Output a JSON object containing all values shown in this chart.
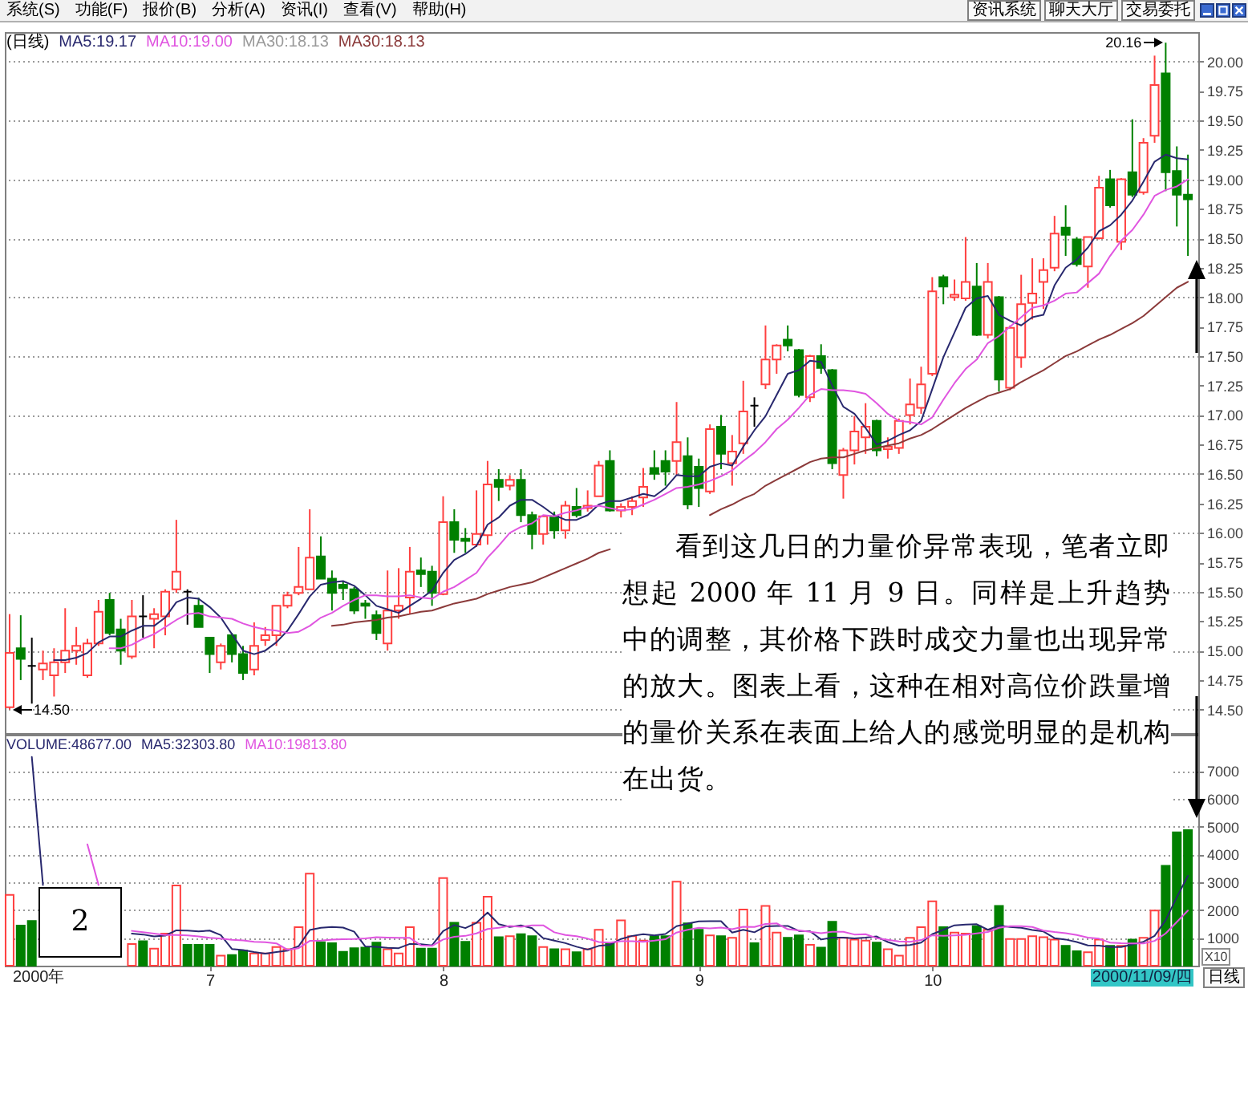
{
  "chart_data": [
    {
      "type": "candlestick",
      "categories": [
        null,
        null,
        null,
        null,
        null,
        null,
        null,
        null,
        null,
        null,
        null,
        null,
        null,
        null,
        null,
        null,
        null,
        null,
        null,
        null,
        null,
        null,
        null,
        null,
        null,
        null,
        null,
        null,
        null,
        null,
        null,
        null,
        null,
        null,
        null,
        null,
        null,
        null,
        null,
        null,
        null,
        null,
        null,
        null,
        null,
        null,
        null,
        null,
        null,
        null,
        null,
        null,
        null,
        null,
        null,
        null,
        null,
        null,
        null,
        null,
        null,
        null,
        null,
        null,
        null,
        null,
        null,
        null,
        null,
        null,
        null,
        null,
        null,
        null,
        null,
        null,
        null,
        null,
        null,
        null,
        null,
        null,
        null,
        null,
        null,
        null,
        null,
        null,
        null,
        null,
        null,
        null,
        null,
        null,
        null,
        null,
        null,
        null,
        null,
        null,
        null,
        null,
        null,
        null,
        null,
        null,
        null
      ],
      "ohlc": [
        [
          14.52,
          15.31,
          14.5,
          14.98
        ],
        [
          15.02,
          15.3,
          14.75,
          14.93
        ],
        [
          14.87,
          15.11,
          14.55,
          14.87
        ],
        [
          14.84,
          15.0,
          14.75,
          14.89
        ],
        [
          14.79,
          15.02,
          14.61,
          14.9
        ],
        [
          14.9,
          15.36,
          14.81,
          15.0
        ],
        [
          15.0,
          15.2,
          14.88,
          15.04
        ],
        [
          14.79,
          15.1,
          14.77,
          15.06
        ],
        [
          15.06,
          15.43,
          15.04,
          15.33
        ],
        [
          15.43,
          15.49,
          15.13,
          15.15
        ],
        [
          15.18,
          15.27,
          14.88,
          15.0
        ],
        [
          14.95,
          15.43,
          14.93,
          15.29
        ],
        [
          15.29,
          15.47,
          15.11,
          15.29
        ],
        [
          15.27,
          15.36,
          15.02,
          15.31
        ],
        [
          15.29,
          15.52,
          15.13,
          15.5
        ],
        [
          15.52,
          16.11,
          15.49,
          15.67
        ],
        [
          15.5,
          15.52,
          15.22,
          15.5
        ],
        [
          15.38,
          15.45,
          15.2,
          15.2
        ],
        [
          15.11,
          15.11,
          14.81,
          14.97
        ],
        [
          14.9,
          15.06,
          14.84,
          15.04
        ],
        [
          15.13,
          15.15,
          14.9,
          14.97
        ],
        [
          14.97,
          15.04,
          14.75,
          14.81
        ],
        [
          14.84,
          15.24,
          14.79,
          15.04
        ],
        [
          15.09,
          15.2,
          15.04,
          15.13
        ],
        [
          15.13,
          15.38,
          15.04,
          15.38
        ],
        [
          15.38,
          15.5,
          15.36,
          15.47
        ],
        [
          15.49,
          15.88,
          15.47,
          15.54
        ],
        [
          15.52,
          16.2,
          15.52,
          15.79
        ],
        [
          15.8,
          15.97,
          15.61,
          15.61
        ],
        [
          15.61,
          15.68,
          15.34,
          15.49
        ],
        [
          15.56,
          15.59,
          15.43,
          15.53
        ],
        [
          15.52,
          15.54,
          15.31,
          15.34
        ],
        [
          15.4,
          15.43,
          15.27,
          15.38
        ],
        [
          15.3,
          15.34,
          15.09,
          15.15
        ],
        [
          15.06,
          15.68,
          15.0,
          15.34
        ],
        [
          15.34,
          15.7,
          15.27,
          15.38
        ],
        [
          15.45,
          15.88,
          15.31,
          15.67
        ],
        [
          15.68,
          15.79,
          15.54,
          15.65
        ],
        [
          15.67,
          15.72,
          15.38,
          15.49
        ],
        [
          15.48,
          16.31,
          15.47,
          16.09
        ],
        [
          16.09,
          16.2,
          15.83,
          15.94
        ],
        [
          15.95,
          16.04,
          15.83,
          15.93
        ],
        [
          15.9,
          16.36,
          15.88,
          15.99
        ],
        [
          15.98,
          16.61,
          15.9,
          16.41
        ],
        [
          16.45,
          16.54,
          16.27,
          16.39
        ],
        [
          16.4,
          16.49,
          16.36,
          16.45
        ],
        [
          16.45,
          16.54,
          16.09,
          16.15
        ],
        [
          16.15,
          16.18,
          15.86,
          15.99
        ],
        [
          15.99,
          16.15,
          15.9,
          16.14
        ],
        [
          16.14,
          16.18,
          15.95,
          16.02
        ],
        [
          16.02,
          16.27,
          15.95,
          16.23
        ],
        [
          16.22,
          16.38,
          16.13,
          16.15
        ],
        [
          16.21,
          16.36,
          16.18,
          16.23
        ],
        [
          16.31,
          16.61,
          16.31,
          16.57
        ],
        [
          16.61,
          16.7,
          16.18,
          16.19
        ],
        [
          16.19,
          16.25,
          16.13,
          16.22
        ],
        [
          16.22,
          16.31,
          16.15,
          16.27
        ],
        [
          16.3,
          16.55,
          16.22,
          16.39
        ],
        [
          16.55,
          16.7,
          16.45,
          16.5
        ],
        [
          16.61,
          16.7,
          16.4,
          16.52
        ],
        [
          16.61,
          17.11,
          16.49,
          16.77
        ],
        [
          16.65,
          16.81,
          16.2,
          16.24
        ],
        [
          16.56,
          16.63,
          16.22,
          16.38
        ],
        [
          16.35,
          16.92,
          16.33,
          16.88
        ],
        [
          16.9,
          17.0,
          16.54,
          16.67
        ],
        [
          16.59,
          16.83,
          16.4,
          16.69
        ],
        [
          16.76,
          17.29,
          16.67,
          17.03
        ],
        [
          17.08,
          17.15,
          16.9,
          17.08
        ],
        [
          17.26,
          17.76,
          17.22,
          17.47
        ],
        [
          17.47,
          17.6,
          17.35,
          17.59
        ],
        [
          17.64,
          17.76,
          17.54,
          17.59
        ],
        [
          17.55,
          17.56,
          17.15,
          17.17
        ],
        [
          17.15,
          17.51,
          17.11,
          17.5
        ],
        [
          17.5,
          17.6,
          17.35,
          17.4
        ],
        [
          17.38,
          17.39,
          16.54,
          16.59
        ],
        [
          16.49,
          16.72,
          16.29,
          16.7
        ],
        [
          16.7,
          16.99,
          16.58,
          16.86
        ],
        [
          16.81,
          17.1,
          16.67,
          16.9
        ],
        [
          16.95,
          16.96,
          16.65,
          16.7
        ],
        [
          16.71,
          16.81,
          16.63,
          16.73
        ],
        [
          16.72,
          16.97,
          16.67,
          16.95
        ],
        [
          17.0,
          17.31,
          16.92,
          17.09
        ],
        [
          17.06,
          17.41,
          17.01,
          17.26
        ],
        [
          17.35,
          18.17,
          17.33,
          18.05
        ],
        [
          18.17,
          18.19,
          17.94,
          18.09
        ],
        [
          18.0,
          18.15,
          17.97,
          18.02
        ],
        [
          17.99,
          18.51,
          17.97,
          18.13
        ],
        [
          18.09,
          18.29,
          17.67,
          17.68
        ],
        [
          17.68,
          18.29,
          17.65,
          18.13
        ],
        [
          18.0,
          18.01,
          17.2,
          17.3
        ],
        [
          17.23,
          17.76,
          17.21,
          17.74
        ],
        [
          17.49,
          18.19,
          17.4,
          17.94
        ],
        [
          17.95,
          18.33,
          17.81,
          18.03
        ],
        [
          18.13,
          18.33,
          17.9,
          18.23
        ],
        [
          18.25,
          18.69,
          18.22,
          18.54
        ],
        [
          18.59,
          18.78,
          18.35,
          18.53
        ],
        [
          18.49,
          18.51,
          18.26,
          18.28
        ],
        [
          18.26,
          18.51,
          18.08,
          18.51
        ],
        [
          18.5,
          19.03,
          18.49,
          18.93
        ],
        [
          19.0,
          19.08,
          18.76,
          18.78
        ],
        [
          18.47,
          19.01,
          18.4,
          19.0
        ],
        [
          19.06,
          19.51,
          18.85,
          18.87
        ],
        [
          18.89,
          19.35,
          18.87,
          19.31
        ],
        [
          19.37,
          20.05,
          19.31,
          19.8
        ],
        [
          19.9,
          20.16,
          18.9,
          19.06
        ],
        [
          19.07,
          19.28,
          18.6,
          18.87
        ],
        [
          18.87,
          19.21,
          18.35,
          18.83
        ]
      ],
      "colors": [
        "#ff4040",
        "#008000",
        "#000000",
        "#ff4040",
        "#ff4040",
        "#ff4040",
        "#ff4040",
        "#ff4040",
        "#ff4040",
        "#008000",
        "#008000",
        "#ff4040",
        "#000000",
        "#ff4040",
        "#ff4040",
        "#ff4040",
        "#000000",
        "#008000",
        "#008000",
        "#ff4040",
        "#008000",
        "#008000",
        "#ff4040",
        "#ff4040",
        "#ff4040",
        "#ff4040",
        "#ff4040",
        "#ff4040",
        "#008000",
        "#008000",
        "#008000",
        "#008000",
        "#008000",
        "#008000",
        "#ff4040",
        "#ff4040",
        "#ff4040",
        "#008000",
        "#008000",
        "#ff4040",
        "#008000",
        "#008000",
        "#ff4040",
        "#ff4040",
        "#008000",
        "#ff4040",
        "#008000",
        "#008000",
        "#ff4040",
        "#008000",
        "#ff4040",
        "#008000",
        "#ff4040",
        "#ff4040",
        "#008000",
        "#ff4040",
        "#ff4040",
        "#ff4040",
        "#008000",
        "#008000",
        "#ff4040",
        "#008000",
        "#008000",
        "#ff4040",
        "#008000",
        "#ff4040",
        "#ff4040",
        "#000000",
        "#ff4040",
        "#ff4040",
        "#008000",
        "#008000",
        "#ff4040",
        "#008000",
        "#008000",
        "#ff4040",
        "#ff4040",
        "#ff4040",
        "#008000",
        "#ff4040",
        "#ff4040",
        "#ff4040",
        "#ff4040",
        "#ff4040",
        "#008000",
        "#ff4040",
        "#ff4040",
        "#008000",
        "#ff4040",
        "#008000",
        "#ff4040",
        "#ff4040",
        "#ff4040",
        "#ff4040",
        "#ff4040",
        "#008000",
        "#008000",
        "#ff4040",
        "#ff4040",
        "#008000",
        "#ff4040",
        "#008000",
        "#ff4040",
        "#ff4040",
        "#008000",
        "#008000",
        "#008000"
      ],
      "series": [
        {
          "name": "MA5:19.17",
          "type": "line",
          "color": "#28286e",
          "values": [
            null,
            null,
            null,
            null,
            14.92,
            14.92,
            14.94,
            14.98,
            15.07,
            15.12,
            15.12,
            15.17,
            15.21,
            15.21,
            15.28,
            15.41,
            15.45,
            15.44,
            15.37,
            15.28,
            15.14,
            15.0,
            14.97,
            15.0,
            15.07,
            15.17,
            15.31,
            15.46,
            15.56,
            15.58,
            15.59,
            15.55,
            15.47,
            15.38,
            15.35,
            15.32,
            15.38,
            15.44,
            15.51,
            15.66,
            15.77,
            15.82,
            15.89,
            16.07,
            16.13,
            16.23,
            16.28,
            16.28,
            16.22,
            16.15,
            16.11,
            16.11,
            16.15,
            16.24,
            16.27,
            16.27,
            16.3,
            16.33,
            16.31,
            16.38,
            16.49,
            16.48,
            16.48,
            16.56,
            16.59,
            16.57,
            16.73,
            16.87,
            16.99,
            17.17,
            17.35,
            17.38,
            17.46,
            17.45,
            17.25,
            17.07,
            17.01,
            16.89,
            16.75,
            16.78,
            16.83,
            16.87,
            16.95,
            17.22,
            17.49,
            17.7,
            17.91,
            17.99,
            18.01,
            17.85,
            17.8,
            17.76,
            17.83,
            17.85,
            18.1,
            18.25,
            18.32,
            18.42,
            18.56,
            18.61,
            18.7,
            18.82,
            18.98,
            19.15,
            19.21,
            19.18,
            19.17
          ]
        },
        {
          "name": "MA10:19.00",
          "type": "line",
          "color": "#e055e0",
          "values": [
            null,
            null,
            null,
            null,
            null,
            null,
            null,
            null,
            null,
            15.02,
            15.02,
            15.05,
            15.1,
            15.14,
            15.2,
            15.26,
            15.31,
            15.32,
            15.29,
            15.28,
            15.27,
            15.23,
            15.2,
            15.18,
            15.17,
            15.15,
            15.16,
            15.21,
            15.28,
            15.32,
            15.38,
            15.43,
            15.47,
            15.47,
            15.46,
            15.46,
            15.47,
            15.45,
            15.44,
            15.5,
            15.54,
            15.6,
            15.66,
            15.79,
            15.89,
            16.0,
            16.05,
            16.08,
            16.15,
            16.14,
            16.17,
            16.19,
            16.22,
            16.23,
            16.21,
            16.19,
            16.2,
            16.24,
            16.28,
            16.33,
            16.38,
            16.39,
            16.41,
            16.44,
            16.48,
            16.53,
            16.61,
            16.68,
            16.77,
            16.88,
            16.96,
            17.06,
            17.17,
            17.22,
            17.21,
            17.21,
            17.2,
            17.18,
            17.1,
            17.01,
            16.95,
            16.94,
            16.92,
            16.98,
            17.13,
            17.27,
            17.39,
            17.47,
            17.61,
            17.67,
            17.75,
            17.83,
            17.91,
            17.93,
            17.97,
            18.03,
            18.04,
            18.12,
            18.2,
            18.35,
            18.48,
            18.57,
            18.7,
            18.86,
            18.91,
            18.94,
            19.0
          ]
        },
        {
          "name": "MA30:18.13",
          "type": "line",
          "color": "#8b3a3a",
          "values": [
            null,
            null,
            null,
            null,
            null,
            null,
            null,
            null,
            null,
            null,
            null,
            null,
            null,
            null,
            null,
            null,
            null,
            null,
            null,
            null,
            null,
            null,
            null,
            null,
            null,
            null,
            null,
            null,
            null,
            15.21,
            15.22,
            15.24,
            15.25,
            15.26,
            15.28,
            15.29,
            15.31,
            15.33,
            15.34,
            15.37,
            15.4,
            15.42,
            15.44,
            15.48,
            15.51,
            15.54,
            15.56,
            15.58,
            15.62,
            15.66,
            15.7,
            15.74,
            15.78,
            15.83,
            15.86,
            null,
            null,
            null,
            null,
            null,
            null,
            null,
            null,
            16.15,
            16.2,
            16.24,
            16.29,
            16.33,
            16.4,
            16.45,
            16.5,
            16.55,
            16.6,
            16.63,
            16.64,
            16.64,
            16.67,
            16.7,
            16.72,
            16.74,
            16.76,
            16.8,
            16.83,
            16.88,
            16.94,
            17.0,
            17.06,
            17.11,
            17.16,
            17.19,
            17.22,
            17.28,
            17.33,
            17.38,
            17.44,
            17.5,
            17.54,
            17.59,
            17.64,
            17.68,
            17.73,
            17.78,
            17.84,
            17.92,
            18.0,
            18.08,
            18.13
          ]
        }
      ],
      "ylim": [
        14.3,
        20.25
      ],
      "yticks": [
        {
          "value": 14.5,
          "label": "14.50"
        },
        14.75,
        {
          "value": 15,
          "label": "15.00"
        },
        15.25,
        {
          "value": 15.5,
          "label": "15.50"
        },
        15.75,
        {
          "value": 16,
          "label": "16.00"
        },
        16.25,
        {
          "value": 16.5,
          "label": "16.50"
        },
        16.75,
        {
          "value": 17,
          "label": "17.00"
        },
        17.25,
        {
          "value": 17.5,
          "label": "17.50"
        },
        17.75,
        {
          "value": 18,
          "label": "18.00"
        },
        18.25,
        {
          "value": 18.5,
          "label": "18.50"
        },
        18.75,
        {
          "value": 19,
          "label": "19.00"
        },
        19.25,
        {
          "value": 19.5,
          "label": "19.50"
        },
        19.75,
        {
          "value": 20,
          "label": "20.00"
        }
      ],
      "grid": "y",
      "legend": "top left",
      "tick_labels": "y",
      "annotations": [
        "系统(S)  功能(F)  报价(B)  分析(A)  资讯(I)  查看(V)  帮助(H)",
        "资讯系统",
        "聊天大厅",
        "交易委托",
        "(日线)",
        "MA30:18.13",
        "看到这几日的力量价异常表现，笔者立即想起 2000 年 11 月 9 日。同样是上升趋势中的调整，其价格下跌时成交力量也出现异常的放大。图表上看，这种在相对高位价跌量增的量价关系在表面上给人的感觉明显的是机构在出货。",
        "20.16",
        "14.50"
      ]
    },
    {
      "type": "bar",
      "categories": [
        null,
        null,
        null,
        null,
        null,
        null,
        null,
        null,
        null,
        null,
        null,
        null,
        null,
        null,
        null,
        null,
        null,
        null,
        "7",
        null,
        null,
        null,
        null,
        null,
        null,
        null,
        null,
        null,
        null,
        null,
        null,
        null,
        null,
        null,
        null,
        null,
        null,
        null,
        null,
        "8",
        null,
        null,
        null,
        null,
        null,
        null,
        null,
        null,
        null,
        null,
        null,
        null,
        null,
        null,
        null,
        null,
        null,
        null,
        null,
        null,
        null,
        null,
        "9",
        null,
        null,
        null,
        null,
        null,
        null,
        null,
        null,
        null,
        null,
        null,
        null,
        null,
        null,
        null,
        null,
        null,
        null,
        null,
        null,
        "10",
        null,
        null,
        null,
        null,
        null,
        null,
        null,
        null,
        null,
        null,
        null,
        null,
        null,
        null,
        null,
        null,
        null,
        null,
        null,
        null,
        null,
        null,
        null
      ],
      "series": [
        {
          "type": "bar",
          "values": [
            2540,
            1440,
            1610,
            null,
            null,
            null,
            null,
            null,
            null,
            null,
            null,
            780,
            880,
            610,
            1150,
            2880,
            750,
            750,
            750,
            360,
            380,
            540,
            440,
            440,
            670,
            590,
            1380,
            3310,
            840,
            810,
            500,
            630,
            650,
            830,
            590,
            440,
            1380,
            610,
            610,
            3150,
            1540,
            860,
            1540,
            2480,
            1020,
            1060,
            1130,
            1060,
            670,
            590,
            590,
            480,
            590,
            1290,
            790,
            1630,
            1060,
            900,
            1060,
            1060,
            3020,
            1520,
            1290,
            1090,
            1060,
            1000,
            2020,
            810,
            2150,
            1190,
            1000,
            1090,
            750,
            650,
            1580,
            1000,
            940,
            900,
            830,
            590,
            360,
            1000,
            1380,
            2310,
            1380,
            1190,
            1150,
            1420,
            1290,
            2150,
            960,
            960,
            1060,
            1020,
            940,
            710,
            520,
            480,
            940,
            710,
            710,
            940,
            1000,
            1980,
            3590,
            4790,
            4870
          ],
          "colors": [
            "#ff4040",
            "#008000",
            "#008000",
            null,
            null,
            null,
            null,
            null,
            null,
            null,
            null,
            "#ff4040",
            "#008000",
            "#ff4040",
            "#ff4040",
            "#ff4040",
            "#008000",
            "#008000",
            "#008000",
            "#ff4040",
            "#008000",
            "#008000",
            "#ff4040",
            "#ff4040",
            "#ff4040",
            "#ff4040",
            "#ff4040",
            "#ff4040",
            "#008000",
            "#008000",
            "#008000",
            "#008000",
            "#008000",
            "#008000",
            "#ff4040",
            "#ff4040",
            "#ff4040",
            "#008000",
            "#008000",
            "#ff4040",
            "#008000",
            "#008000",
            "#ff4040",
            "#ff4040",
            "#008000",
            "#ff4040",
            "#008000",
            "#008000",
            "#ff4040",
            "#008000",
            "#ff4040",
            "#008000",
            "#ff4040",
            "#ff4040",
            "#008000",
            "#ff4040",
            "#ff4040",
            "#ff4040",
            "#008000",
            "#008000",
            "#ff4040",
            "#008000",
            "#008000",
            "#ff4040",
            "#008000",
            "#ff4040",
            "#ff4040",
            "#008000",
            "#ff4040",
            "#ff4040",
            "#008000",
            "#008000",
            "#ff4040",
            "#008000",
            "#008000",
            "#ff4040",
            "#ff4040",
            "#ff4040",
            "#008000",
            "#ff4040",
            "#ff4040",
            "#ff4040",
            "#ff4040",
            "#ff4040",
            "#008000",
            "#ff4040",
            "#ff4040",
            "#008000",
            "#ff4040",
            "#008000",
            "#ff4040",
            "#ff4040",
            "#ff4040",
            "#ff4040",
            "#ff4040",
            "#008000",
            "#008000",
            "#ff4040",
            "#ff4040",
            "#008000",
            "#ff4040",
            "#008000",
            "#ff4040",
            "#ff4040",
            "#008000",
            "#008000",
            "#008000"
          ]
        },
        {
          "name": "MA5:32303.80",
          "type": "line",
          "color": "#28286e",
          "values": [
            null,
            null,
            7500,
            2900,
            null,
            null,
            null,
            null,
            null,
            null,
            null,
            1150,
            1120,
            1050,
            1080,
            1270,
            1260,
            1230,
            1260,
            1100,
            600,
            560,
            490,
            430,
            490,
            540,
            700,
            1280,
            1360,
            1390,
            1370,
            1220,
            690,
            680,
            640,
            630,
            780,
            770,
            730,
            1240,
            1460,
            1350,
            1540,
            1910,
            1490,
            1390,
            1450,
            1350,
            990,
            900,
            810,
            680,
            580,
            710,
            750,
            960,
            1070,
            1130,
            1090,
            1140,
            1420,
            1510,
            1590,
            1600,
            1600,
            1190,
            1290,
            1200,
            1410,
            1430,
            1430,
            1250,
            1240,
            940,
            1010,
            1010,
            980,
            1010,
            1050,
            850,
            720,
            740,
            830,
            1130,
            1290,
            1450,
            1480,
            1490,
            1290,
            1440,
            1390,
            1360,
            1280,
            1230,
            990,
            940,
            850,
            730,
            720,
            670,
            670,
            760,
            860,
            1070,
            1640,
            2460,
            3230
          ]
        },
        {
          "name": "MA10:19813.80",
          "type": "line",
          "color": "#e055e0",
          "values": [
            null,
            null,
            null,
            null,
            null,
            null,
            null,
            4360,
            2900,
            null,
            null,
            1250,
            1200,
            1150,
            1100,
            1100,
            1090,
            1050,
            1000,
            970,
            930,
            910,
            860,
            840,
            800,
            570,
            630,
            890,
            900,
            940,
            950,
            960,
            980,
            1020,
            1010,
            1000,
            1000,
            730,
            710,
            940,
            1040,
            1070,
            1160,
            1320,
            1360,
            1430,
            1400,
            1450,
            1450,
            1200,
            1100,
            1060,
            970,
            850,
            830,
            880,
            880,
            860,
            900,
            950,
            1190,
            1290,
            1360,
            1340,
            1370,
            1310,
            1400,
            1390,
            1500,
            1520,
            1310,
            1270,
            1220,
            1170,
            1220,
            1220,
            1120,
            1130,
            990,
            930,
            870,
            860,
            920,
            1090,
            1070,
            1090,
            1110,
            1160,
            1210,
            1360,
            1420,
            1420,
            1390,
            1260,
            1210,
            1170,
            1100,
            1010,
            970,
            830,
            810,
            800,
            800,
            890,
            1160,
            1570,
            1980
          ]
        }
      ],
      "ylim": [
        0,
        8300
      ],
      "yticks": [
        1000,
        2000,
        3000,
        4000,
        5000,
        6000,
        7000
      ],
      "grid": "y",
      "legend": "top left",
      "annotations": [
        "VOLUME:48677.00",
        "2",
        "X10",
        "2000/11/09/四",
        "日线",
        "2000年"
      ]
    }
  ]
}
